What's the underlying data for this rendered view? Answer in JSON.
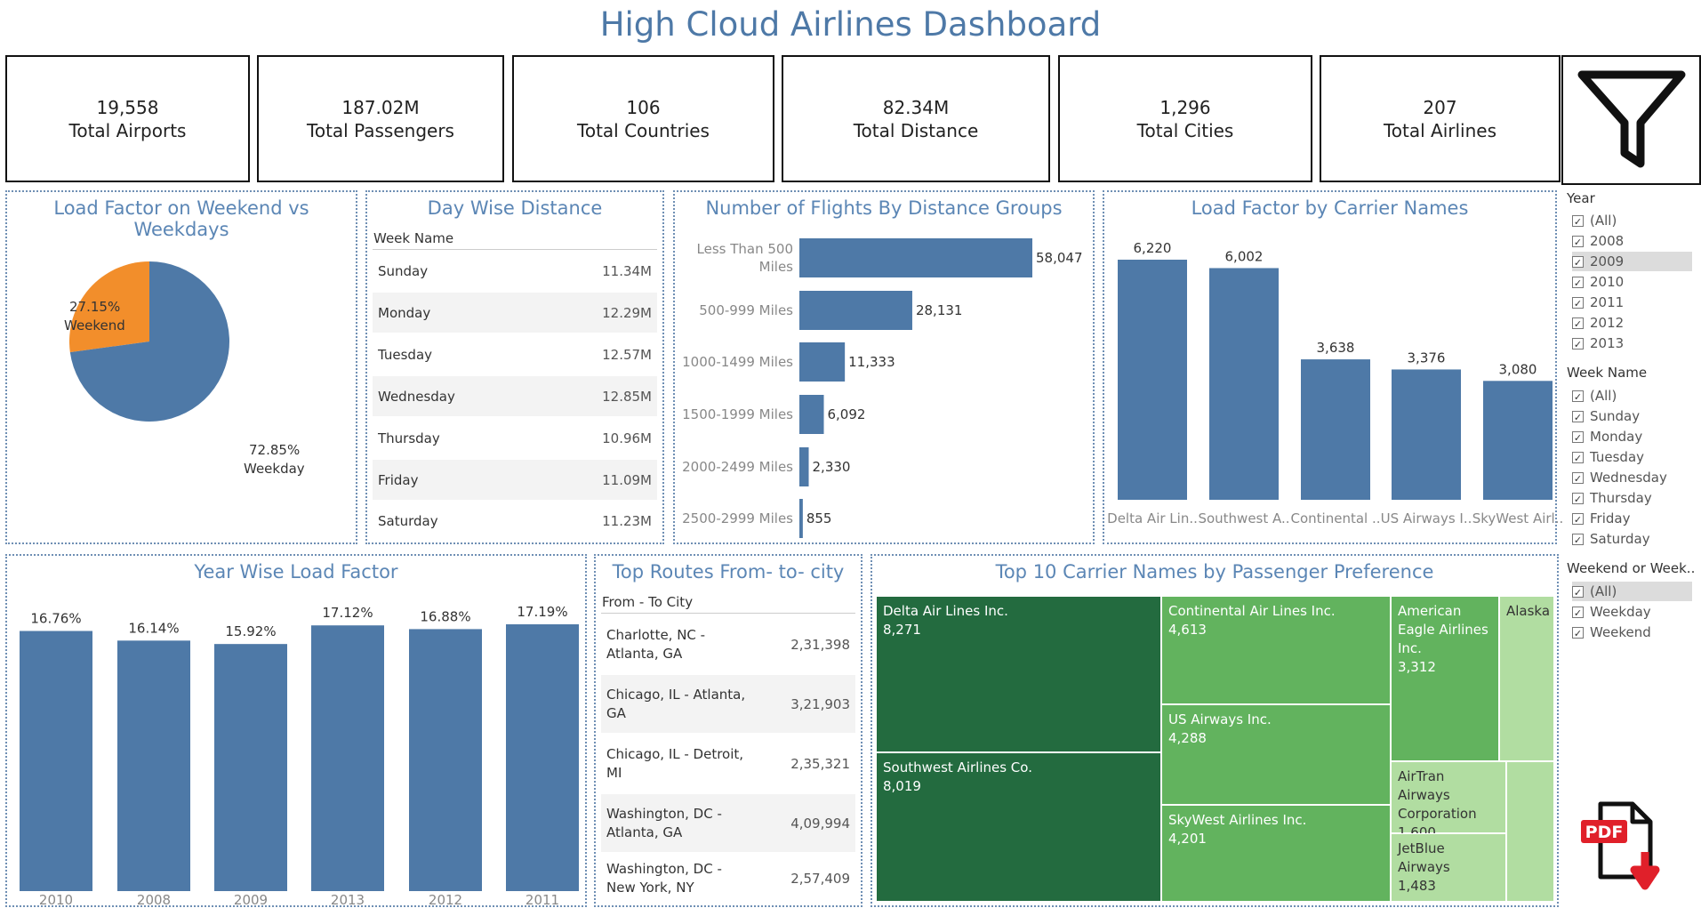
{
  "title": "High Cloud Airlines Dashboard",
  "kpis": [
    {
      "value": "19,558",
      "label": "Total Airports"
    },
    {
      "value": "187.02M",
      "label": "Total Passengers"
    },
    {
      "value": "106",
      "label": "Total Countries"
    },
    {
      "value": "82.34M",
      "label": "Total Distance"
    },
    {
      "value": "1,296",
      "label": "Total Cities"
    },
    {
      "value": "207",
      "label": "Total Airlines"
    }
  ],
  "icons": {
    "filter": "filter-funnel-icon",
    "pdf": "pdf-download-icon"
  },
  "colors": {
    "title": "#4e79a7",
    "bar": "#4e79a7",
    "orange": "#f28e2b",
    "tree_dark": "#236b3f",
    "tree_mid": "#62b35e",
    "tree_light": "#b1dda1"
  },
  "weekend_pie": {
    "title": "Load Factor on Weekend vs Weekdays",
    "chart_data": {
      "type": "pie",
      "slices": [
        {
          "label": "Weekend",
          "percent_label": "27.15%",
          "value": 27.15,
          "color": "#f28e2b"
        },
        {
          "label": "Weekday",
          "percent_label": "72.85%",
          "value": 72.85,
          "color": "#4e79a7"
        }
      ]
    }
  },
  "day_distance": {
    "title": "Day Wise Distance",
    "column_header": "Week Name",
    "rows": [
      {
        "day": "Sunday",
        "value": "11.34M"
      },
      {
        "day": "Monday",
        "value": "12.29M"
      },
      {
        "day": "Tuesday",
        "value": "12.57M"
      },
      {
        "day": "Wednesday",
        "value": "12.85M"
      },
      {
        "day": "Thursday",
        "value": "10.96M"
      },
      {
        "day": "Friday",
        "value": "11.09M"
      },
      {
        "day": "Saturday",
        "value": "11.23M"
      }
    ]
  },
  "distance_groups": {
    "title": "Number of Flights By Distance Groups",
    "chart_data": {
      "type": "bar",
      "orientation": "horizontal",
      "categories": [
        "Less Than 500 Miles",
        "500-999 Miles",
        "1000-1499 Miles",
        "1500-1999 Miles",
        "2000-2499 Miles",
        "2500-2999 Miles"
      ],
      "values": [
        58047,
        28131,
        11333,
        6092,
        2330,
        855
      ],
      "value_labels": [
        "58,047",
        "28,131",
        "11,333",
        "6,092",
        "2,330",
        "855"
      ]
    }
  },
  "carrier_load": {
    "title": "Load Factor by Carrier Names",
    "chart_data": {
      "type": "bar",
      "categories": [
        "Delta Air Lin..",
        "Southwest A..",
        "Continental ..",
        "US Airways I..",
        "SkyWest Airl.."
      ],
      "values": [
        6220,
        6002,
        3638,
        3376,
        3080
      ],
      "value_labels": [
        "6,220",
        "6,002",
        "3,638",
        "3,376",
        "3,080"
      ]
    }
  },
  "year_load": {
    "title": "Year Wise Load Factor",
    "chart_data": {
      "type": "bar",
      "categories": [
        "2010",
        "2008",
        "2009",
        "2013",
        "2012",
        "2011"
      ],
      "values": [
        16.76,
        16.14,
        15.92,
        17.12,
        16.88,
        17.19
      ],
      "value_labels": [
        "16.76%",
        "16.14%",
        "15.92%",
        "17.12%",
        "16.88%",
        "17.19%"
      ]
    }
  },
  "routes": {
    "title": "Top Routes From- to- city",
    "column_header": "From - To City",
    "rows": [
      {
        "line1": "Charlotte, NC -",
        "line2": "Atlanta, GA",
        "value": "2,31,398"
      },
      {
        "line1": "Chicago, IL - Atlanta,",
        "line2": "GA",
        "value": "3,21,903"
      },
      {
        "line1": "Chicago, IL - Detroit,",
        "line2": "MI",
        "value": "2,35,321"
      },
      {
        "line1": "Washington, DC -",
        "line2": "Atlanta, GA",
        "value": "4,09,994"
      },
      {
        "line1": "Washington, DC -",
        "line2": "New York, NY",
        "value": "2,57,409"
      }
    ]
  },
  "treemap": {
    "title": "Top 10 Carrier Names by Passenger Preference",
    "chart_data": {
      "type": "treemap",
      "items": [
        {
          "name": "Delta Air Lines Inc.",
          "value_label": "8,271",
          "value": 8271
        },
        {
          "name": "Southwest Airlines Co.",
          "value_label": "8,019",
          "value": 8019
        },
        {
          "name": "Continental Air Lines Inc.",
          "value_label": "4,613",
          "value": 4613
        },
        {
          "name": "US Airways Inc.",
          "value_label": "4,288",
          "value": 4288
        },
        {
          "name": "SkyWest Airlines Inc.",
          "value_label": "4,201",
          "value": 4201
        },
        {
          "name": "American Eagle Airlines Inc.",
          "value_label": "3,312",
          "value": 3312
        },
        {
          "name": "Alaska",
          "value_label": "",
          "value": null
        },
        {
          "name": "AirTran Airways Corporation",
          "value_label": "1,600",
          "value": 1600
        },
        {
          "name": "JetBlue Airways",
          "value_label": "1,483",
          "value": 1483
        }
      ]
    }
  },
  "filters": {
    "year": {
      "title": "Year",
      "items": [
        "(All)",
        "2008",
        "2009",
        "2010",
        "2011",
        "2012",
        "2013"
      ],
      "selected": "2009"
    },
    "week": {
      "title": "Week Name",
      "items": [
        "(All)",
        "Sunday",
        "Monday",
        "Tuesday",
        "Wednesday",
        "Thursday",
        "Friday",
        "Saturday"
      ]
    },
    "weekend": {
      "title": "Weekend or Week..",
      "items": [
        "(All)",
        "Weekday",
        "Weekend"
      ],
      "selected": "(All)"
    }
  }
}
